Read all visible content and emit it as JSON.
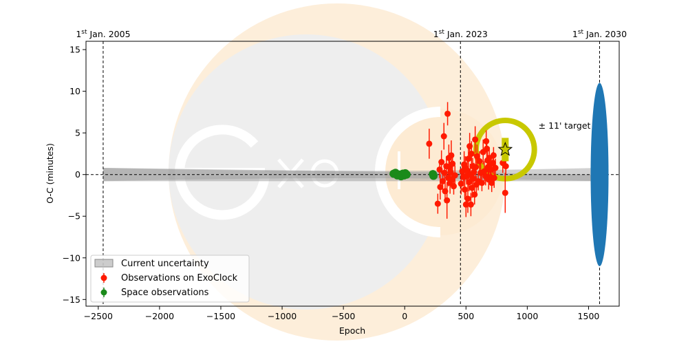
{
  "chart_data": {
    "type": "scatter",
    "xlabel": "Epoch",
    "ylabel": "O-C (minutes)",
    "xlim": [
      -2600,
      1750
    ],
    "ylim": [
      -15.8,
      16
    ],
    "xticks": [
      -2500,
      -2000,
      -1500,
      -1000,
      -500,
      0,
      500,
      1000,
      1500
    ],
    "yticks": [
      -15,
      -10,
      -5,
      0,
      5,
      10,
      15
    ],
    "reference_lines": [
      {
        "x": -2460,
        "sup": "st",
        "prefix": "1",
        "label": " Jan. 2005"
      },
      {
        "x": 455,
        "sup": "st",
        "prefix": "1",
        "label": " Jan. 2023"
      },
      {
        "x": 1590,
        "sup": "st",
        "prefix": "1",
        "label": " Jan. 2030"
      }
    ],
    "uncertainty_band": {
      "x_start": -2460,
      "x_end": 1590,
      "half_width_at_ends": 0.8,
      "color": "#999999"
    },
    "future_uncertainty": {
      "x": 1590,
      "half_width": 11,
      "color": "#1f77b4"
    },
    "target_marker": {
      "x": 820,
      "y": 3.0,
      "ring_radius_y": 3.5,
      "label": "± 11' target",
      "color": "#c8c800"
    },
    "series": [
      {
        "name": "Observations on ExoClock",
        "color": "#ff1a00",
        "points": [
          [
            200,
            3.7,
            1.8
          ],
          [
            270,
            -3.5,
            1.2
          ],
          [
            285,
            0.6,
            1.0
          ],
          [
            290,
            -1.5,
            1.5
          ],
          [
            300,
            1.5,
            1.4
          ],
          [
            310,
            -0.8,
            1.3
          ],
          [
            320,
            4.6,
            1.6
          ],
          [
            325,
            0.2,
            1.1
          ],
          [
            330,
            -2.0,
            1.4
          ],
          [
            340,
            1.0,
            1.2
          ],
          [
            345,
            -3.1,
            2.2
          ],
          [
            350,
            7.3,
            1.4
          ],
          [
            355,
            -0.4,
            1.0
          ],
          [
            360,
            2.0,
            1.6
          ],
          [
            365,
            0.9,
            1.2
          ],
          [
            370,
            -1.0,
            1.3
          ],
          [
            375,
            0.3,
            1.0
          ],
          [
            380,
            2.3,
            1.8
          ],
          [
            385,
            -0.6,
            1.1
          ],
          [
            390,
            1.3,
            1.3
          ],
          [
            400,
            -1.4,
            1.0
          ],
          [
            410,
            -0.1,
            1.2
          ],
          [
            460,
            -1.1,
            1.3
          ],
          [
            470,
            0.4,
            1.0
          ],
          [
            480,
            -0.3,
            1.1
          ],
          [
            485,
            1.2,
            1.6
          ],
          [
            490,
            -1.8,
            1.2
          ],
          [
            495,
            0.8,
            1.4
          ],
          [
            500,
            -3.6,
            1.5
          ],
          [
            505,
            -0.2,
            1.0
          ],
          [
            510,
            0.5,
            1.2
          ],
          [
            515,
            -2.9,
            1.7
          ],
          [
            520,
            1.9,
            1.3
          ],
          [
            525,
            -0.9,
            1.1
          ],
          [
            530,
            3.4,
            1.6
          ],
          [
            535,
            0.0,
            1.3
          ],
          [
            540,
            -3.6,
            1.4
          ],
          [
            545,
            2.5,
            1.5
          ],
          [
            550,
            -1.6,
            1.2
          ],
          [
            555,
            1.0,
            1.0
          ],
          [
            560,
            -0.5,
            1.3
          ],
          [
            565,
            0.3,
            1.1
          ],
          [
            570,
            -2.4,
            1.2
          ],
          [
            575,
            4.2,
            1.6
          ],
          [
            580,
            0.9,
            1.2
          ],
          [
            585,
            -1.2,
            1.0
          ],
          [
            590,
            2.2,
            1.4
          ],
          [
            600,
            -0.8,
            1.1
          ],
          [
            610,
            1.6,
            1.2
          ],
          [
            620,
            0.2,
            1.3
          ],
          [
            630,
            -1.0,
            1.0
          ],
          [
            640,
            2.7,
            1.5
          ],
          [
            650,
            0.4,
            1.2
          ],
          [
            660,
            -0.2,
            1.1
          ],
          [
            665,
            4.0,
            1.3
          ],
          [
            670,
            3.1,
            1.2
          ],
          [
            675,
            1.7,
            1.4
          ],
          [
            680,
            0.9,
            1.0
          ],
          [
            685,
            -0.6,
            1.2
          ],
          [
            690,
            2.0,
            1.3
          ],
          [
            695,
            1.2,
            1.1
          ],
          [
            700,
            -0.3,
            1.0
          ],
          [
            705,
            0.6,
            1.2
          ],
          [
            710,
            -1.0,
            1.1
          ],
          [
            720,
            1.4,
            1.3
          ],
          [
            725,
            2.3,
            1.0
          ],
          [
            730,
            -0.4,
            1.2
          ],
          [
            740,
            0.8,
            1.1
          ],
          [
            800,
            1.4,
            1.2
          ],
          [
            820,
            -2.2,
            2.4
          ],
          [
            825,
            1.0,
            1.0
          ]
        ]
      },
      {
        "name": "Space observations",
        "color": "#1a8a1a",
        "points": [
          [
            -90,
            0.1,
            0.35
          ],
          [
            -75,
            0.2,
            0.35
          ],
          [
            -60,
            -0.1,
            0.35
          ],
          [
            -45,
            0.0,
            0.35
          ],
          [
            -30,
            -0.2,
            0.35
          ],
          [
            -15,
            0.1,
            0.35
          ],
          [
            -5,
            -0.1,
            0.35
          ],
          [
            5,
            0.15,
            0.35
          ],
          [
            15,
            0.0,
            0.35
          ],
          [
            230,
            0.05,
            0.35
          ],
          [
            235,
            -0.15,
            0.35
          ]
        ]
      }
    ],
    "legend": {
      "position": "lower-left",
      "entries": [
        "Current uncertainty",
        "Observations on ExoClock",
        "Space observations"
      ]
    },
    "grid": false
  }
}
